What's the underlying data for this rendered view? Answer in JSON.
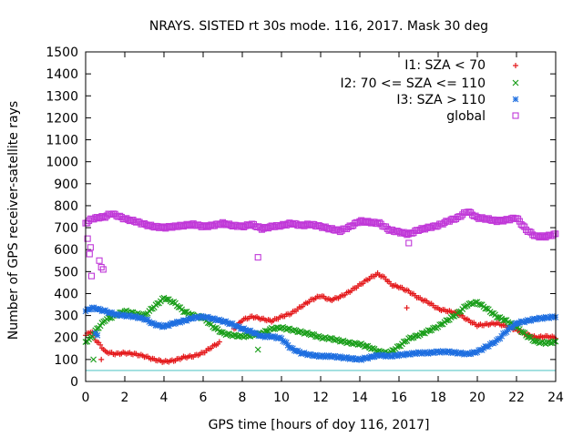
{
  "chart_data": {
    "type": "scatter",
    "title": "NRAYS. SISTED rt 30s mode. 116, 2017. Mask 30 deg",
    "xlabel": "GPS time [hours of doy 116, 2017]",
    "ylabel": "Number of GPS receiver-satellite rays",
    "xlim": [
      0,
      24
    ],
    "ylim": [
      0,
      1500
    ],
    "xticks": [
      "0",
      "2",
      "4",
      "6",
      "8",
      "10",
      "12",
      "14",
      "16",
      "18",
      "20",
      "22",
      "24"
    ],
    "yticks": [
      "0",
      "100",
      "200",
      "300",
      "400",
      "500",
      "600",
      "700",
      "800",
      "900",
      "1000",
      "1100",
      "1200",
      "1300",
      "1400",
      "1500"
    ],
    "legend_position": "top-right",
    "reference_line": {
      "y": 50,
      "color": "#5ec8c8"
    },
    "series": [
      {
        "name": "I1: SZA < 70",
        "symbol": "+",
        "color": "#e41a1c",
        "points": [
          [
            0,
            210
          ],
          [
            0.3,
            230
          ],
          [
            0.5,
            190
          ],
          [
            0.8,
            160
          ],
          [
            1,
            135
          ],
          [
            1.5,
            125
          ],
          [
            2,
            130
          ],
          [
            2.5,
            125
          ],
          [
            3,
            115
          ],
          [
            3.5,
            100
          ],
          [
            4,
            90
          ],
          [
            4.5,
            95
          ],
          [
            5,
            110
          ],
          [
            5.5,
            115
          ],
          [
            6,
            130
          ],
          [
            6.5,
            160
          ],
          [
            6.9,
            180
          ],
          [
            7.5,
            230
          ],
          [
            8,
            280
          ],
          [
            8.5,
            295
          ],
          [
            9,
            285
          ],
          [
            9.5,
            275
          ],
          [
            10,
            295
          ],
          [
            10.5,
            310
          ],
          [
            11,
            340
          ],
          [
            11.5,
            370
          ],
          [
            12,
            390
          ],
          [
            12.5,
            370
          ],
          [
            13,
            385
          ],
          [
            13.5,
            410
          ],
          [
            14,
            440
          ],
          [
            14.5,
            470
          ],
          [
            14.9,
            490
          ],
          [
            15.3,
            470
          ],
          [
            15.6,
            440
          ],
          [
            16,
            430
          ],
          [
            16.5,
            410
          ],
          [
            17,
            380
          ],
          [
            17.5,
            360
          ],
          [
            18,
            330
          ],
          [
            18.5,
            320
          ],
          [
            19,
            310
          ],
          [
            19.5,
            280
          ],
          [
            20,
            255
          ],
          [
            20.5,
            260
          ],
          [
            21,
            265
          ],
          [
            21.5,
            250
          ],
          [
            22,
            235
          ],
          [
            22.5,
            215
          ],
          [
            23,
            200
          ],
          [
            23.5,
            205
          ],
          [
            24,
            200
          ]
        ],
        "outliers": [
          [
            0.8,
            100
          ],
          [
            16.4,
            335
          ]
        ]
      },
      {
        "name": "I2: 70 <= SZA <= 110",
        "symbol": "x",
        "color": "#1a9e1a",
        "points": [
          [
            0,
            180
          ],
          [
            0.3,
            200
          ],
          [
            0.5,
            230
          ],
          [
            0.8,
            260
          ],
          [
            1,
            280
          ],
          [
            1.5,
            300
          ],
          [
            2,
            320
          ],
          [
            2.5,
            310
          ],
          [
            3,
            300
          ],
          [
            3.5,
            340
          ],
          [
            4,
            380
          ],
          [
            4.5,
            360
          ],
          [
            5,
            320
          ],
          [
            5.5,
            300
          ],
          [
            6,
            290
          ],
          [
            6.5,
            250
          ],
          [
            7,
            220
          ],
          [
            7.5,
            210
          ],
          [
            8,
            205
          ],
          [
            8.5,
            210
          ],
          [
            9,
            220
          ],
          [
            9.5,
            240
          ],
          [
            10,
            245
          ],
          [
            10.5,
            235
          ],
          [
            11,
            225
          ],
          [
            11.5,
            215
          ],
          [
            12,
            200
          ],
          [
            12.5,
            195
          ],
          [
            13,
            185
          ],
          [
            13.5,
            175
          ],
          [
            14,
            170
          ],
          [
            14.5,
            155
          ],
          [
            15,
            135
          ],
          [
            15.5,
            130
          ],
          [
            16,
            160
          ],
          [
            16.5,
            195
          ],
          [
            17,
            210
          ],
          [
            17.5,
            230
          ],
          [
            18,
            250
          ],
          [
            18.5,
            280
          ],
          [
            19,
            310
          ],
          [
            19.5,
            350
          ],
          [
            20,
            360
          ],
          [
            20.5,
            330
          ],
          [
            21,
            295
          ],
          [
            21.5,
            275
          ],
          [
            22,
            250
          ],
          [
            22.5,
            210
          ],
          [
            23,
            180
          ],
          [
            23.5,
            175
          ],
          [
            24,
            180
          ]
        ],
        "outliers": [
          [
            0.4,
            100
          ],
          [
            8.8,
            145
          ]
        ]
      },
      {
        "name": "I3: SZA > 110",
        "symbol": "*",
        "color": "#1f6fe0",
        "points": [
          [
            0,
            320
          ],
          [
            0.3,
            335
          ],
          [
            0.6,
            330
          ],
          [
            1,
            320
          ],
          [
            1.5,
            305
          ],
          [
            2,
            300
          ],
          [
            2.5,
            295
          ],
          [
            3,
            285
          ],
          [
            3.5,
            260
          ],
          [
            4,
            250
          ],
          [
            4.5,
            265
          ],
          [
            5,
            275
          ],
          [
            5.5,
            290
          ],
          [
            6,
            295
          ],
          [
            6.5,
            285
          ],
          [
            7,
            275
          ],
          [
            7.5,
            260
          ],
          [
            8,
            240
          ],
          [
            8.5,
            225
          ],
          [
            9,
            205
          ],
          [
            9.5,
            205
          ],
          [
            10,
            195
          ],
          [
            10.5,
            150
          ],
          [
            11,
            130
          ],
          [
            11.5,
            120
          ],
          [
            12,
            115
          ],
          [
            12.5,
            115
          ],
          [
            13,
            110
          ],
          [
            13.5,
            105
          ],
          [
            14,
            100
          ],
          [
            14.5,
            110
          ],
          [
            15,
            120
          ],
          [
            15.5,
            115
          ],
          [
            16,
            120
          ],
          [
            16.5,
            125
          ],
          [
            17,
            130
          ],
          [
            17.5,
            130
          ],
          [
            18,
            135
          ],
          [
            18.5,
            135
          ],
          [
            19,
            130
          ],
          [
            19.5,
            125
          ],
          [
            20,
            135
          ],
          [
            20.5,
            160
          ],
          [
            21,
            185
          ],
          [
            21.5,
            230
          ],
          [
            22,
            265
          ],
          [
            22.5,
            275
          ],
          [
            23,
            285
          ],
          [
            23.5,
            290
          ],
          [
            24,
            295
          ]
        ],
        "outliers": [
          [
            0.5,
            220
          ],
          [
            0.6,
            210
          ]
        ]
      },
      {
        "name": "global",
        "symbol": "square",
        "color": "#c038d8",
        "points": [
          [
            0,
            720
          ],
          [
            0.3,
            740
          ],
          [
            0.6,
            745
          ],
          [
            1,
            750
          ],
          [
            1.3,
            765
          ],
          [
            1.6,
            755
          ],
          [
            2,
            740
          ],
          [
            2.5,
            730
          ],
          [
            3,
            715
          ],
          [
            3.5,
            705
          ],
          [
            4,
            700
          ],
          [
            4.5,
            705
          ],
          [
            5,
            710
          ],
          [
            5.5,
            715
          ],
          [
            6,
            705
          ],
          [
            6.5,
            710
          ],
          [
            7,
            720
          ],
          [
            7.5,
            710
          ],
          [
            8,
            705
          ],
          [
            8.5,
            715
          ],
          [
            9,
            695
          ],
          [
            9.5,
            705
          ],
          [
            10,
            710
          ],
          [
            10.5,
            720
          ],
          [
            11,
            710
          ],
          [
            11.5,
            715
          ],
          [
            12,
            705
          ],
          [
            12.5,
            695
          ],
          [
            13,
            685
          ],
          [
            13.5,
            705
          ],
          [
            14,
            730
          ],
          [
            14.5,
            725
          ],
          [
            15,
            720
          ],
          [
            15.5,
            690
          ],
          [
            16,
            680
          ],
          [
            16.5,
            670
          ],
          [
            17,
            690
          ],
          [
            17.5,
            700
          ],
          [
            18,
            710
          ],
          [
            18.5,
            730
          ],
          [
            19,
            745
          ],
          [
            19.5,
            775
          ],
          [
            20,
            745
          ],
          [
            20.5,
            740
          ],
          [
            21,
            730
          ],
          [
            21.5,
            735
          ],
          [
            22,
            745
          ],
          [
            22.5,
            690
          ],
          [
            23,
            660
          ],
          [
            23.5,
            660
          ],
          [
            24,
            670
          ]
        ],
        "outliers": [
          [
            0.1,
            650
          ],
          [
            0.2,
            580
          ],
          [
            0.25,
            610
          ],
          [
            0.3,
            480
          ],
          [
            0.7,
            550
          ],
          [
            0.8,
            520
          ],
          [
            0.9,
            510
          ],
          [
            8.8,
            565
          ],
          [
            16.5,
            630
          ]
        ]
      }
    ]
  }
}
